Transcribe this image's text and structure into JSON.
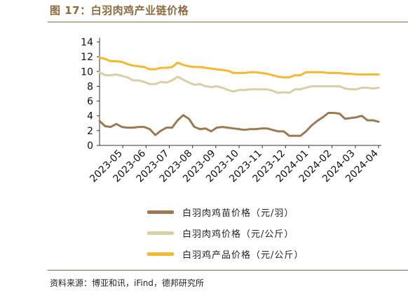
{
  "header": {
    "title": "图 17：白羽肉鸡产业链价格"
  },
  "footer": {
    "source": "资料来源：博亚和讯，iFind，德邦研究所"
  },
  "colors": {
    "accent": "#8B6A3E",
    "chick": "#9B7A52",
    "broiler": "#D9CFA6",
    "product": "#F5B82E"
  },
  "chart_data": {
    "type": "line",
    "ylim": [
      0,
      14
    ],
    "yticks": [
      0,
      2,
      4,
      6,
      8,
      10,
      12,
      14
    ],
    "xlabels": [
      "2023-05",
      "2023-06",
      "2023-07",
      "2023-08",
      "2023-09",
      "2023-10",
      "2023-11",
      "2023-12",
      "2024-01",
      "2024-02",
      "2024-03",
      "2024-04"
    ],
    "grid": false,
    "legend_position": "bottom",
    "series": [
      {
        "name": "白羽肉鸡苗价格（元/羽）",
        "color": "#9B7A52",
        "values": [
          3.3,
          2.6,
          2.5,
          2.9,
          2.5,
          2.4,
          2.4,
          2.5,
          2.5,
          2.2,
          1.4,
          2.0,
          2.4,
          2.4,
          3.4,
          4.1,
          3.6,
          2.5,
          2.2,
          2.3,
          1.9,
          2.4,
          2.5,
          2.4,
          2.3,
          2.2,
          2.1,
          2.2,
          2.2,
          2.3,
          2.3,
          2.1,
          1.9,
          1.9,
          1.3,
          1.3,
          1.3,
          1.9,
          2.7,
          3.3,
          3.8,
          4.4,
          4.4,
          4.3,
          3.6,
          3.7,
          3.8,
          4.0,
          3.4,
          3.4,
          3.2
        ]
      },
      {
        "name": "白羽肉鸡价格（元/公斤）",
        "color": "#D9CFA6",
        "values": [
          9.9,
          9.5,
          9.5,
          9.6,
          9.4,
          9.2,
          8.8,
          8.8,
          8.6,
          8.3,
          8.3,
          8.6,
          8.5,
          8.8,
          9.3,
          8.9,
          8.5,
          8.2,
          8.3,
          8.0,
          7.9,
          8.0,
          7.8,
          7.5,
          7.3,
          7.5,
          7.5,
          7.6,
          7.6,
          7.6,
          7.6,
          7.4,
          7.1,
          7.2,
          7.1,
          7.6,
          7.6,
          7.8,
          8.0,
          8.0,
          8.0,
          8.0,
          8.0,
          8.0,
          7.7,
          7.6,
          7.6,
          7.8,
          7.8,
          7.7,
          7.8
        ]
      },
      {
        "name": "白羽鸡产品价格（元/公斤）",
        "color": "#F5B82E",
        "values": [
          11.9,
          11.7,
          11.4,
          11.4,
          11.3,
          11.0,
          10.8,
          10.7,
          10.6,
          10.3,
          10.3,
          10.5,
          10.5,
          10.6,
          11.2,
          10.9,
          10.7,
          10.6,
          10.6,
          10.5,
          10.4,
          10.3,
          10.2,
          10.1,
          9.8,
          9.8,
          9.8,
          9.9,
          9.9,
          9.8,
          9.7,
          9.5,
          9.3,
          9.2,
          9.2,
          9.5,
          9.5,
          9.9,
          9.9,
          9.9,
          9.9,
          9.8,
          9.8,
          9.8,
          9.7,
          9.7,
          9.6,
          9.6,
          9.6,
          9.6,
          9.6
        ]
      }
    ]
  }
}
